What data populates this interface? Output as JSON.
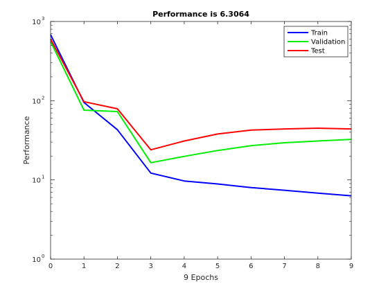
{
  "chart_data": {
    "type": "line",
    "title": "Performance is 6.3064",
    "xlabel": "9 Epochs",
    "ylabel": "Performance",
    "yscale": "log",
    "xlim": [
      0,
      9
    ],
    "ylim": [
      1,
      1000
    ],
    "x": [
      0,
      1,
      2,
      3,
      4,
      5,
      6,
      7,
      8,
      9
    ],
    "xticks": [
      "0",
      "1",
      "2",
      "3",
      "4",
      "5",
      "6",
      "7",
      "8",
      "9"
    ],
    "yticks": [
      {
        "value": 1,
        "base": "10",
        "exp": "0"
      },
      {
        "value": 10,
        "base": "10",
        "exp": "1"
      },
      {
        "value": 100,
        "base": "10",
        "exp": "2"
      },
      {
        "value": 1000,
        "base": "10",
        "exp": "3"
      }
    ],
    "legend_position": "top-right",
    "grid": false,
    "series": [
      {
        "name": "Train",
        "color": "#0000ff",
        "values": [
          680,
          95,
          43,
          12.2,
          9.7,
          8.9,
          8.0,
          7.4,
          6.8,
          6.3
        ]
      },
      {
        "name": "Validation",
        "color": "#00ee00",
        "values": [
          560,
          76,
          73,
          16.5,
          19.8,
          23.5,
          27,
          29.5,
          31,
          32.5
        ]
      },
      {
        "name": "Test",
        "color": "#ff0000",
        "values": [
          600,
          97,
          79,
          24,
          31,
          38,
          42.5,
          44,
          45,
          44
        ]
      }
    ]
  }
}
